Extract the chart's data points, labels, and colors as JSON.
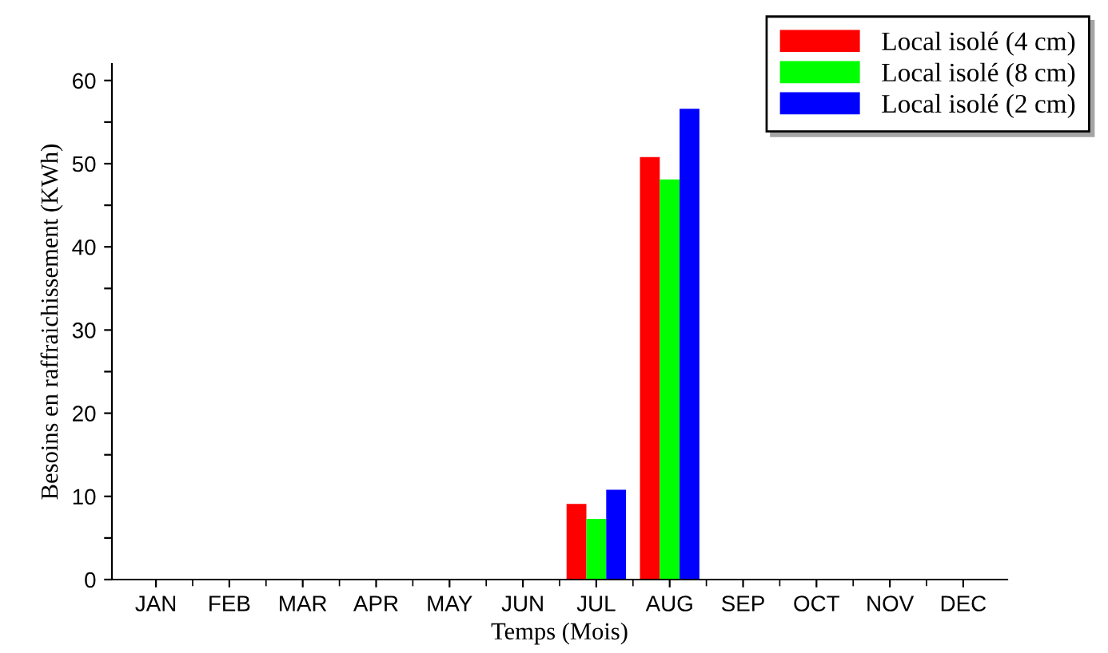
{
  "chart_data": {
    "type": "bar",
    "xlabel": "Temps (Mois)",
    "ylabel": "Besoins en raffraichissement (KWh)",
    "categories": [
      "JAN",
      "FEB",
      "MAR",
      "APR",
      "MAY",
      "JUN",
      "JUL",
      "AUG",
      "SEP",
      "OCT",
      "NOV",
      "DEC"
    ],
    "series": [
      {
        "name": "Local isolé (4 cm)",
        "color": "#ff0000",
        "values": [
          0,
          0,
          0,
          0,
          0,
          0,
          9.1,
          50.8,
          0,
          0,
          0,
          0
        ]
      },
      {
        "name": "Local isolé (8 cm)",
        "color": "#00ff00",
        "values": [
          0,
          0,
          0,
          0,
          0,
          0,
          7.3,
          48.1,
          0,
          0,
          0,
          0
        ]
      },
      {
        "name": "Local isolé (2 cm)",
        "color": "#0000ff",
        "values": [
          0,
          0,
          0,
          0,
          0,
          0,
          10.8,
          56.6,
          0,
          0,
          0,
          0
        ]
      }
    ],
    "ylim": [
      0,
      62
    ],
    "yticks": [
      0,
      {
        "value": 5,
        "label": null
      },
      10,
      {
        "value": 15,
        "label": null
      },
      20,
      {
        "value": 25,
        "label": null
      },
      30,
      {
        "value": 35,
        "label": null
      },
      40,
      {
        "value": 45,
        "label": null
      },
      50,
      {
        "value": 55,
        "label": null
      },
      60
    ],
    "grid": false,
    "legend": "top right"
  }
}
